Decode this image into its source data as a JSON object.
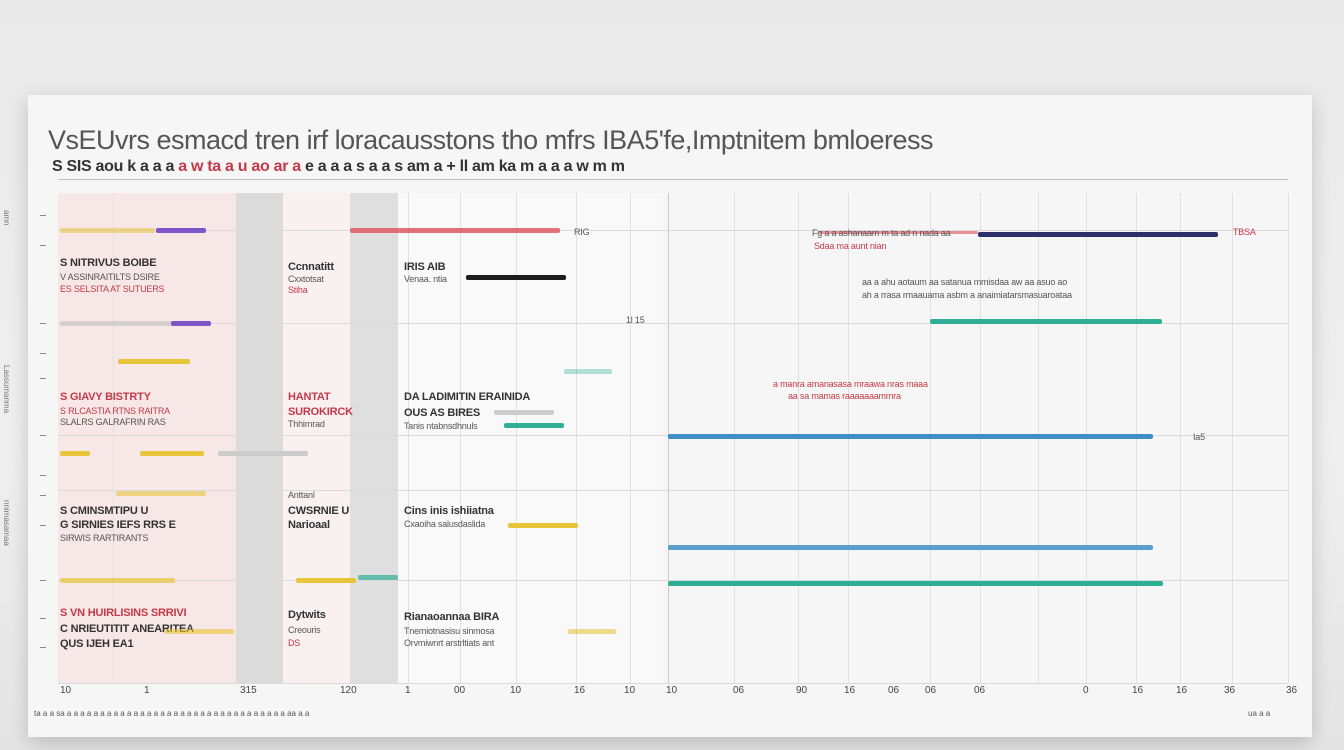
{
  "header": {
    "title": "VsEUvrs esmacd tren irf loracausstons tho mfrs IBA5'fe,Imptnitem bmloeress",
    "subtitle_a": "S SIS aou k a a a ",
    "subtitle_b": "a w ta  a u ao ar a",
    "subtitle_c": "e  a a a s a a s am a + ",
    "subtitle_d": "ll am ka m a a a w m m"
  },
  "colors": {
    "purple": "#7e55c9",
    "red": "#e0505a",
    "yellow": "#e8c43a",
    "teal": "#2fae96",
    "blue": "#3e8fc6",
    "navy": "#2d2f6b",
    "black": "#1c1c1c",
    "shade_pink": "#f7dede",
    "shade_gray": "#cfcfcf"
  },
  "groups": [
    {
      "label_a": "S  NITRIVUS BOIBE",
      "label_b": "V ASSINRAITILTS DSIRE",
      "label_c": "ES SELSITA AT SUTUERS"
    },
    {
      "label_a": "S  GIAVY BISTRTY",
      "label_b": "S RLCASTIA RTNS RAITRA",
      "label_c": "SLALRS GALRAFRIN RAS"
    },
    {
      "label_a": "S  CMINSMTIPU U",
      "label_b": "G SIRNIES IEFS RRS E",
      "label_c": "SIRWIS RARTIRANTS"
    },
    {
      "label_a": "S  VN HUIRLISINS SRRIVI",
      "label_b": "C  NRIEUTITIT ANEARITEA",
      "label_c": "QUS IJEH EA1"
    }
  ],
  "col2": [
    {
      "a": "Ccnnatitt",
      "b": "Cxxtotsat",
      "c": "Stiha"
    },
    {
      "a": "HANTAT",
      "b": "SUROKIRCK",
      "c": "Thhirnrad"
    },
    {
      "a": "CWSRNIE U",
      "b": "Narioaal",
      "c": "Anttanl"
    },
    {
      "a": "Dytwits",
      "b": "Creouris",
      "c": "DS"
    }
  ],
  "col3": [
    {
      "a": "IRIS AIB",
      "b": "Venaa. ntia"
    },
    {
      "a": "DA LADIMITIN ERAINIDA",
      "b": "OUS AS BIRES",
      "c": "Tanis ntabnsdhnuls"
    },
    {
      "a": "Cins inis ishiiatna",
      "b": "Cxaoiha salusdaslida"
    },
    {
      "a": "Rianaoannaa BIRA",
      "b": "Tnemiotnasisu sinmosa",
      "c": "Orvmiwnrt arstrltiats ant"
    }
  ],
  "right_labels": [
    "Fg  a a ashanaam m ta ad n nada aa",
    "Sdaa ma aunt nian",
    "aa a ahu aotaum aa satanua mmisdaa aw aa asuo ao",
    "ah a rrasa rmaauama asbm a anaimiatarsmasuaroataa",
    "a manra amanasasa mraawa nras maaa",
    "aa sa mamas raaaaaaammra"
  ],
  "right_values": [
    "TBSA",
    "RIG",
    "1l 15",
    "Ia5"
  ],
  "ticks": [
    "10",
    "1",
    "315",
    "120",
    "1",
    "00",
    "10",
    "16",
    "10",
    "10",
    "06",
    "90",
    "16",
    "06",
    "06",
    "06",
    "0",
    "16",
    "16",
    "36",
    "36"
  ],
  "footer_left": "ta a a sa a a a a a a a a a a a a a a a a a a a a a a a a a a a a a a a a a aa a a",
  "footer_right": "ua a a",
  "side_marks": [
    "amn",
    "Lassumanma",
    "nnimasamaa"
  ]
}
